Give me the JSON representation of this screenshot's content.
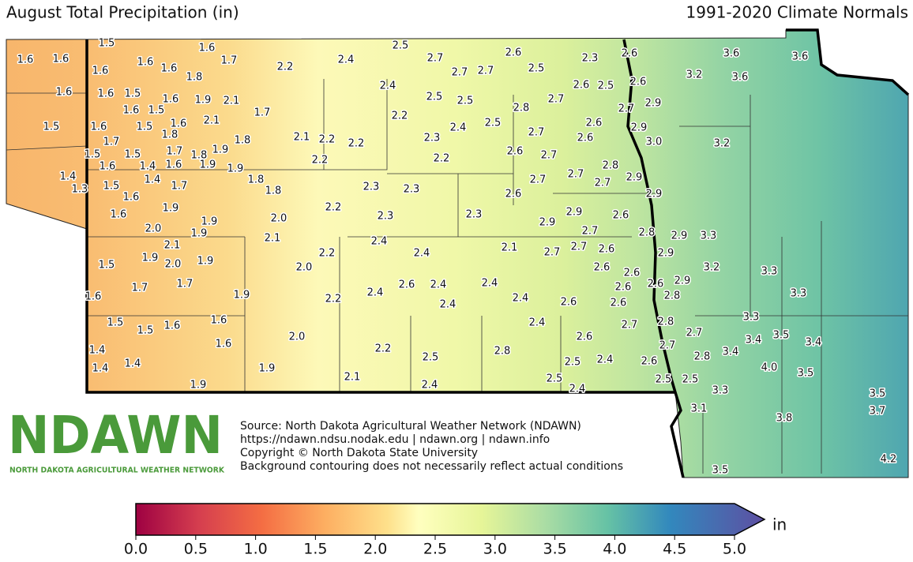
{
  "title": "August Total Precipitation (in)",
  "subtitle": "1991-2020 Climate Normals",
  "station_labels": [
    "1.5",
    "1.6",
    "1.6",
    "1.6",
    "1.6",
    "1.6",
    "1.7",
    "1.6",
    "1.8",
    "2.2",
    "2.4",
    "2.5",
    "2.7",
    "2.7",
    "2.7",
    "2.6",
    "2.5",
    "2.3",
    "2.6",
    "3.6",
    "3.6",
    "3.2",
    "3.6",
    "1.6",
    "1.6",
    "1.5",
    "1.6",
    "1.9",
    "2.1",
    "2.4",
    "2.5",
    "2.5",
    "2.6",
    "2.5",
    "2.6",
    "1.6",
    "1.5",
    "1.7",
    "2.2",
    "2.8",
    "2.7",
    "2.7",
    "2.9",
    "1.5",
    "1.6",
    "1.5",
    "1.6",
    "2.1",
    "2.4",
    "2.5",
    "2.6",
    "2.9",
    "1.7",
    "1.8",
    "1.8",
    "2.1",
    "2.2",
    "2.2",
    "2.3",
    "2.7",
    "2.6",
    "3.0",
    "3.2",
    "1.5",
    "1.5",
    "1.7",
    "1.8",
    "1.9",
    "2.2",
    "2.2",
    "2.6",
    "2.7",
    "1.6",
    "1.4",
    "1.6",
    "1.9",
    "1.9",
    "2.8",
    "2.7",
    "1.4",
    "1.4",
    "1.8",
    "2.7",
    "2.9",
    "2.7",
    "1.3",
    "1.5",
    "1.7",
    "1.8",
    "2.3",
    "2.3",
    "2.6",
    "2.9",
    "1.6",
    "1.9",
    "2.2",
    "2.3",
    "2.3",
    "2.9",
    "2.9",
    "2.6",
    "1.6",
    "2.0",
    "1.9",
    "2.0",
    "1.9",
    "2.7",
    "2.8",
    "2.9",
    "3.3",
    "2.1",
    "2.4",
    "2.1",
    "2.1",
    "1.5",
    "1.9",
    "2.0",
    "1.9",
    "2.2",
    "2.0",
    "2.4",
    "2.7",
    "2.7",
    "2.6",
    "2.9",
    "3.2",
    "3.3",
    "2.6",
    "2.6",
    "1.7",
    "1.7",
    "2.6",
    "2.4",
    "2.4",
    "2.6",
    "2.6",
    "2.9",
    "1.6",
    "1.9",
    "2.2",
    "2.4",
    "2.4",
    "2.4",
    "2.6",
    "2.6",
    "2.8",
    "3.3",
    "1.5",
    "1.5",
    "1.6",
    "1.6",
    "2.4",
    "2.7",
    "2.8",
    "2.7",
    "3.3",
    "2.0",
    "1.6",
    "2.6",
    "3.4",
    "3.5",
    "3.4",
    "1.4",
    "2.2",
    "2.8",
    "2.7",
    "2.8",
    "3.4",
    "2.5",
    "2.5",
    "2.4",
    "2.6",
    "1.4",
    "1.4",
    "1.9",
    "4.0",
    "3.5",
    "2.1",
    "2.5",
    "2.5",
    "2.5",
    "1.9",
    "2.4",
    "2.4",
    "3.3",
    "3.5",
    "3.1",
    "3.7",
    "3.8",
    "4.2",
    "3.5"
  ],
  "logo": {
    "name": "NDAWN",
    "tagline": "NORTH DAKOTA AGRICULTURAL WEATHER NETWORK"
  },
  "source": [
    "Source: North Dakota Agricultural Weather Network (NDAWN)",
    "https://ndawn.ndsu.nodak.edu | ndawn.org | ndawn.info",
    "Copyright © North Dakota State University",
    "Background contouring does not necessarily reflect actual conditions"
  ],
  "colorbar": {
    "unit": "in",
    "range": [
      0,
      5
    ],
    "ticks": [
      {
        "value": 0,
        "label": "0.0"
      },
      {
        "value": 0.5,
        "label": "0.5"
      },
      {
        "value": 1,
        "label": "1.0"
      },
      {
        "value": 1.5,
        "label": "1.5"
      },
      {
        "value": 2,
        "label": "2.0"
      },
      {
        "value": 2.5,
        "label": "2.5"
      },
      {
        "value": 3,
        "label": "3.0"
      },
      {
        "value": 3.5,
        "label": "3.5"
      },
      {
        "value": 4,
        "label": "4.0"
      },
      {
        "value": 4.5,
        "label": "4.5"
      },
      {
        "value": 5,
        "label": "5.0"
      }
    ]
  }
}
